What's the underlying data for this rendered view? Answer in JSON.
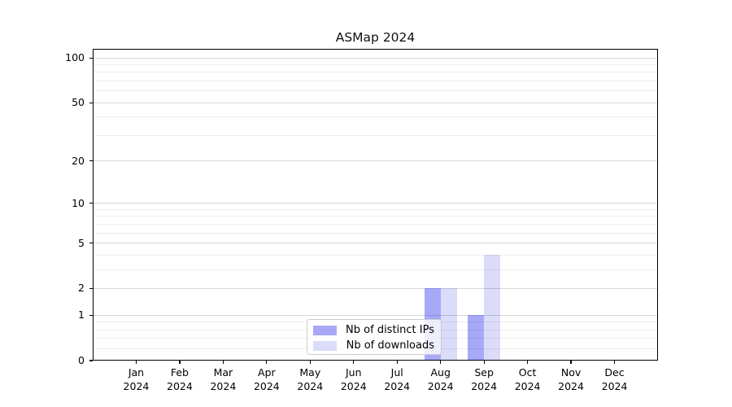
{
  "chart_data": {
    "type": "bar",
    "title": "ASMap 2024",
    "xlabel": "",
    "ylabel": "",
    "y_scale": "log1p",
    "y_max": 115,
    "grid": "horizontal",
    "legend_position": "lower-center",
    "y_major_ticks": [
      0,
      1,
      2,
      5,
      10,
      20,
      50,
      100
    ],
    "y_tick_labels": [
      "0",
      "1",
      "2",
      "5",
      "10",
      "20",
      "50",
      "100"
    ],
    "y_minor_gridlines": [
      0.2,
      0.4,
      0.6,
      0.8,
      3,
      4,
      6,
      7,
      8,
      9,
      30,
      40,
      60,
      70,
      80,
      90
    ],
    "categories": [
      {
        "line1": "Jan",
        "line2": "2024"
      },
      {
        "line1": "Feb",
        "line2": "2024"
      },
      {
        "line1": "Mar",
        "line2": "2024"
      },
      {
        "line1": "Apr",
        "line2": "2024"
      },
      {
        "line1": "May",
        "line2": "2024"
      },
      {
        "line1": "Jun",
        "line2": "2024"
      },
      {
        "line1": "Jul",
        "line2": "2024"
      },
      {
        "line1": "Aug",
        "line2": "2024"
      },
      {
        "line1": "Sep",
        "line2": "2024"
      },
      {
        "line1": "Oct",
        "line2": "2024"
      },
      {
        "line1": "Nov",
        "line2": "2024"
      },
      {
        "line1": "Dec",
        "line2": "2024"
      }
    ],
    "series": [
      {
        "name": "Nb of distinct IPs",
        "color": "#0000eb",
        "alpha": 0.34,
        "effective_hex": "#a8a8f8",
        "values": [
          0,
          0,
          0,
          0,
          0,
          0,
          0,
          2,
          1,
          0,
          0,
          0
        ]
      },
      {
        "name": "Nb of downloads",
        "color": "#0000db",
        "alpha": 0.14,
        "effective_hex": "#dbdbfa",
        "values": [
          0,
          0,
          0,
          0,
          0,
          0,
          0,
          2,
          4,
          0,
          0,
          0
        ]
      }
    ]
  },
  "colors": {
    "background": "#ffffff",
    "spine": "#000000",
    "major_grid": "#d8d8d8",
    "minor_grid": "#ececec",
    "text": "#000000",
    "legend_border": "#cccccc",
    "legend_bg": "#ffffff"
  }
}
